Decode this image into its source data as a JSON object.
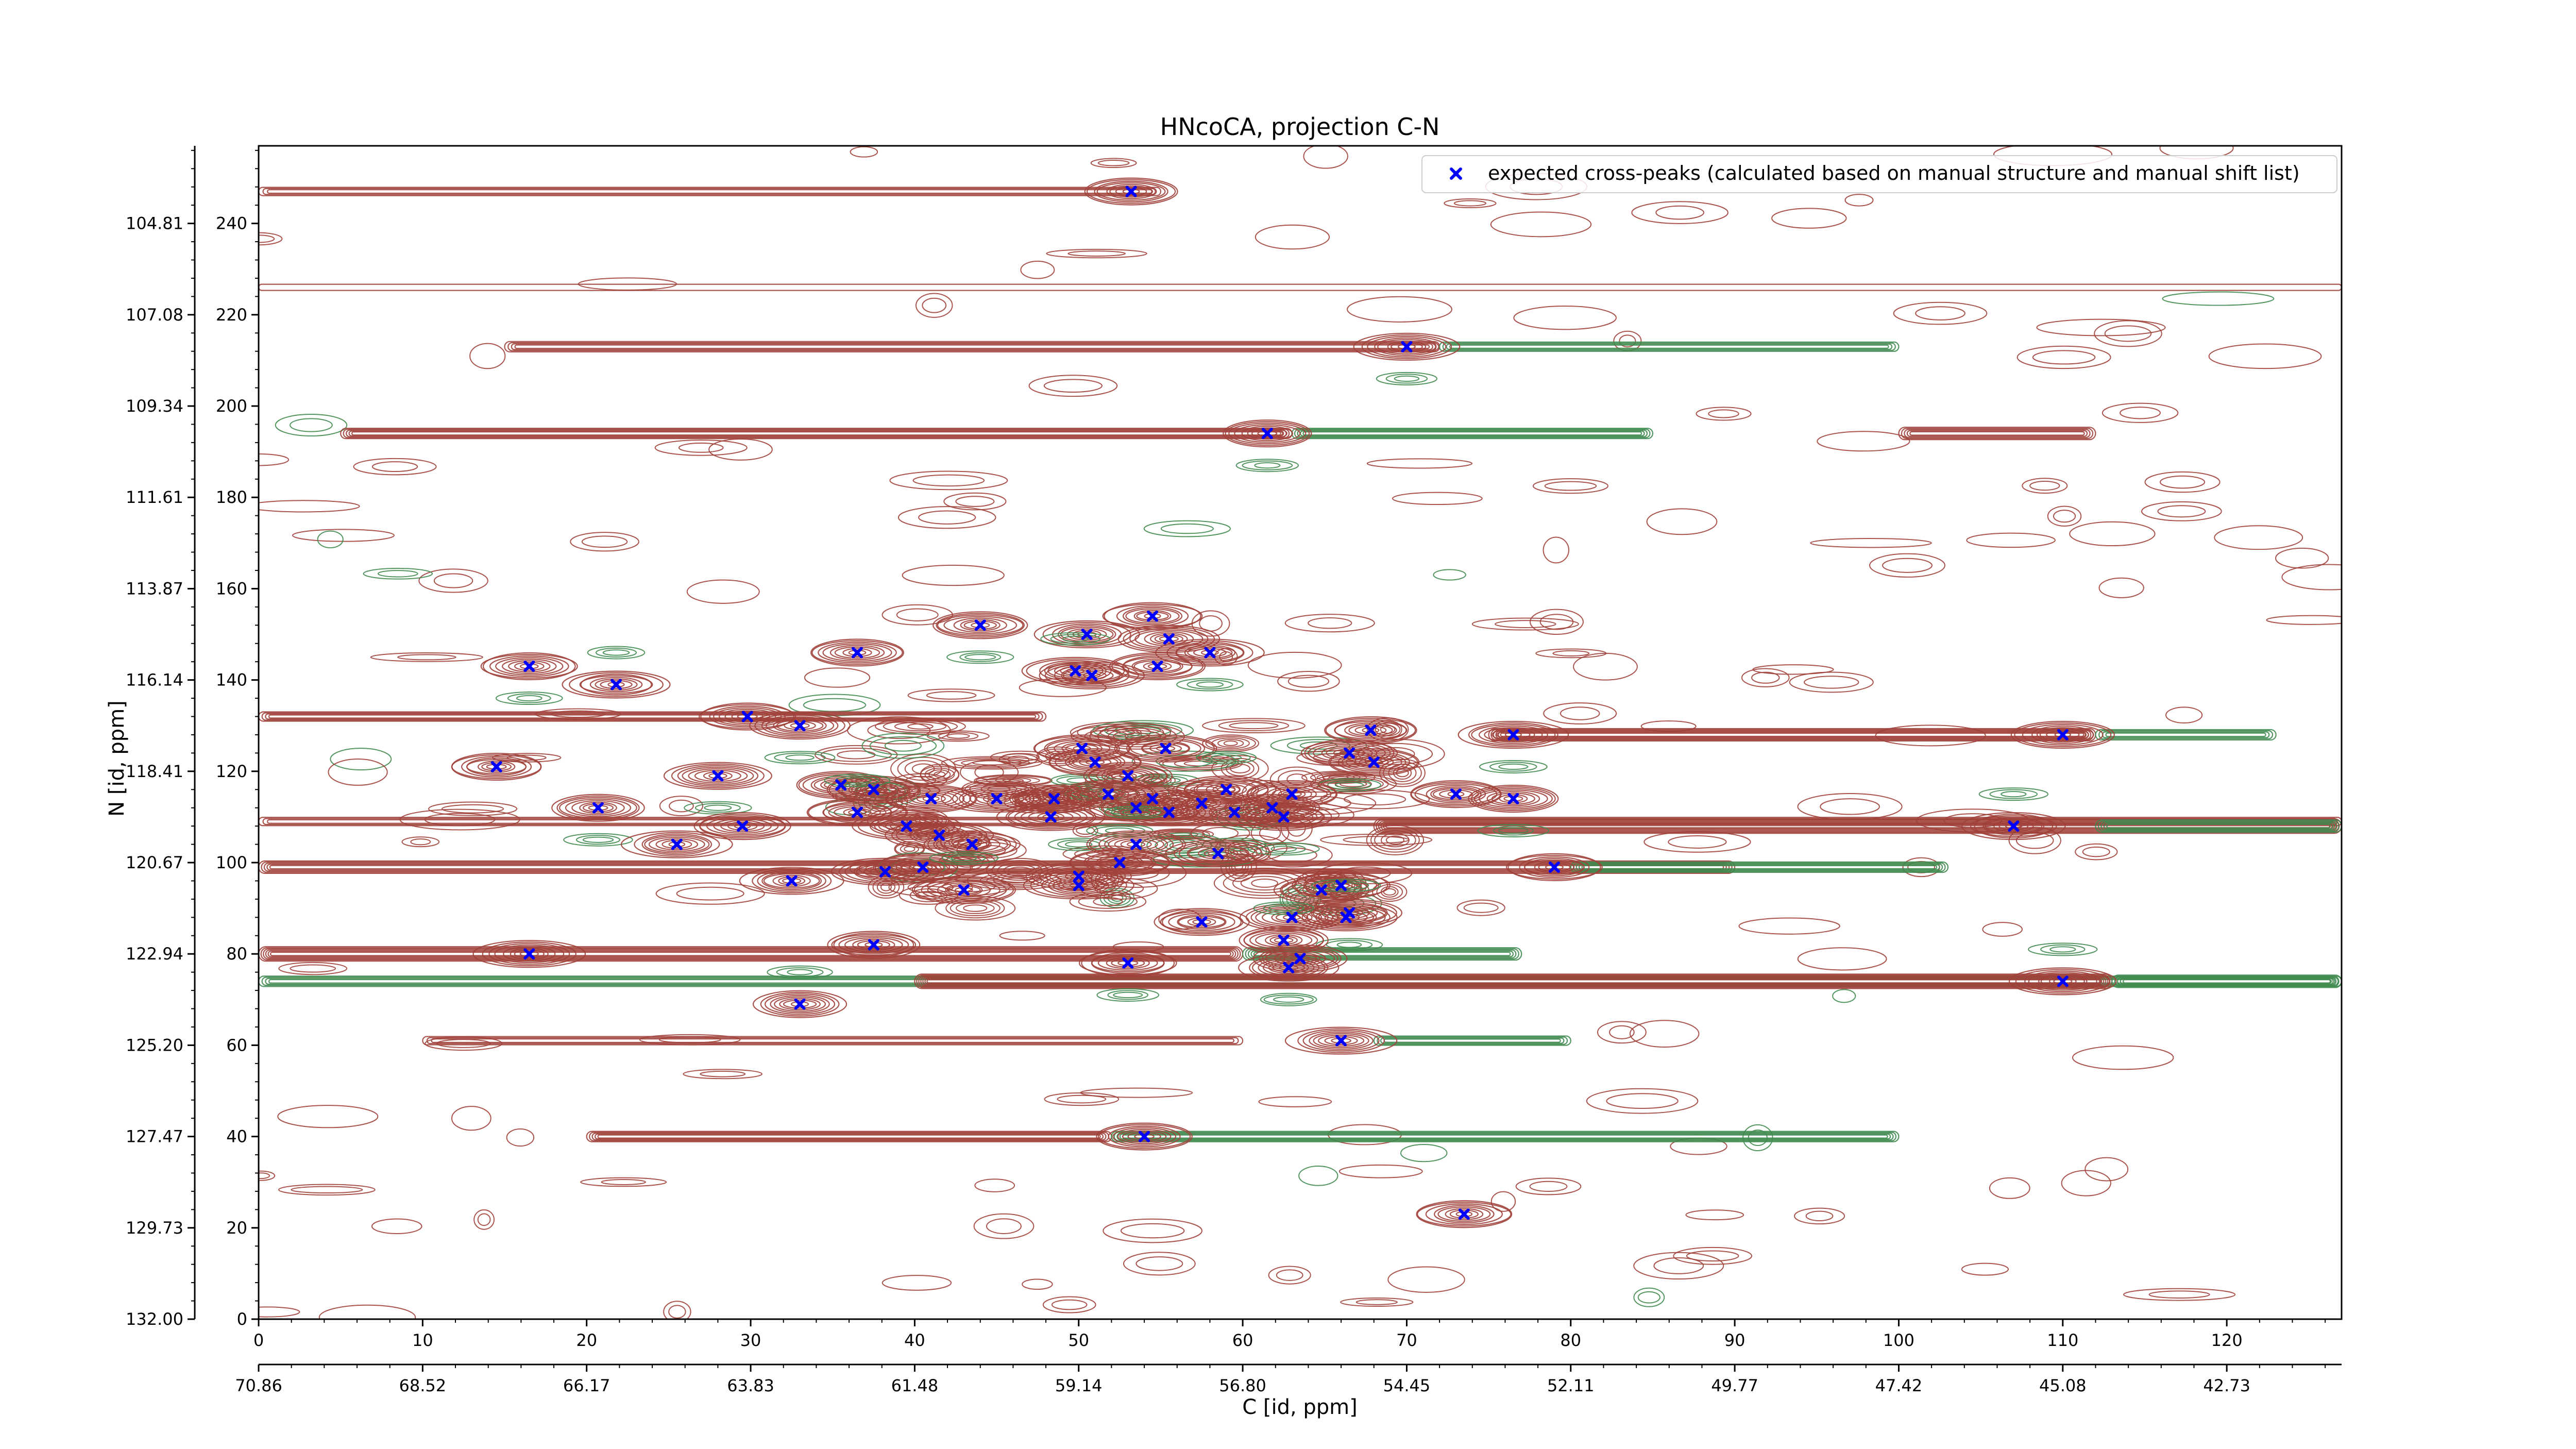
{
  "chart_data": {
    "type": "contour",
    "title": "HNcoCA, projection C-N",
    "xlabel": "C [id, ppm]",
    "ylabel": "N [id, ppm]",
    "xlim": [
      0,
      127
    ],
    "ylim": [
      0,
      257
    ],
    "x_index_ticks": [
      "0",
      "10",
      "20",
      "30",
      "40",
      "50",
      "60",
      "70",
      "80",
      "90",
      "100",
      "110",
      "120"
    ],
    "x_ppm_ticks": [
      "70.86",
      "68.52",
      "66.17",
      "63.83",
      "61.48",
      "59.14",
      "56.80",
      "54.45",
      "52.11",
      "49.77",
      "47.42",
      "45.08",
      "42.73"
    ],
    "y_index_ticks": [
      "0",
      "20",
      "40",
      "60",
      "80",
      "100",
      "120",
      "140",
      "160",
      "180",
      "200",
      "220",
      "240"
    ],
    "y_ppm_ticks": [
      "132.00",
      "129.73",
      "127.47",
      "125.20",
      "122.94",
      "120.67",
      "118.41",
      "116.14",
      "113.87",
      "111.61",
      "109.34",
      "107.08",
      "104.81"
    ],
    "legend": {
      "position": "top-right",
      "label": "expected cross-peaks (calculated based on manual structure and manual shift list)"
    },
    "colors": {
      "positive_contour": "#a0403a",
      "negative_contour": "#3f8a4f",
      "peak_marker": "#0000ff"
    },
    "series": [
      {
        "name": "expected cross-peaks (calculated based on manual structure and manual shift list)",
        "marker": "x",
        "points": [
          [
            53.2,
            247
          ],
          [
            70,
            213
          ],
          [
            61.5,
            194
          ],
          [
            16.5,
            143
          ],
          [
            21.8,
            139
          ],
          [
            36.5,
            146
          ],
          [
            44,
            152
          ],
          [
            50.5,
            150
          ],
          [
            55.5,
            149
          ],
          [
            58,
            146
          ],
          [
            54.5,
            154
          ],
          [
            54.8,
            143
          ],
          [
            49.8,
            142
          ],
          [
            50.8,
            141
          ],
          [
            29.8,
            132
          ],
          [
            33,
            130
          ],
          [
            14.5,
            121
          ],
          [
            28,
            119
          ],
          [
            67.8,
            129
          ],
          [
            66.5,
            124
          ],
          [
            68,
            122
          ],
          [
            76.5,
            128
          ],
          [
            110,
            128
          ],
          [
            50.2,
            125
          ],
          [
            55.3,
            125
          ],
          [
            51,
            122
          ],
          [
            53,
            119
          ],
          [
            35.5,
            117
          ],
          [
            37.5,
            116
          ],
          [
            41,
            114
          ],
          [
            45,
            114
          ],
          [
            48.5,
            114
          ],
          [
            51.8,
            115
          ],
          [
            54.5,
            114
          ],
          [
            59,
            116
          ],
          [
            63,
            115
          ],
          [
            61.8,
            112
          ],
          [
            62.5,
            110
          ],
          [
            55.5,
            111
          ],
          [
            53.5,
            112
          ],
          [
            59.5,
            111
          ],
          [
            57.5,
            113
          ],
          [
            20.7,
            112
          ],
          [
            29.5,
            108
          ],
          [
            36.5,
            111
          ],
          [
            39.5,
            108
          ],
          [
            43.5,
            104
          ],
          [
            48.3,
            110
          ],
          [
            41.5,
            106
          ],
          [
            25.5,
            104
          ],
          [
            32.5,
            96
          ],
          [
            38.2,
            98
          ],
          [
            40.5,
            99
          ],
          [
            43,
            94
          ],
          [
            50,
            97
          ],
          [
            50,
            95
          ],
          [
            52.5,
            100
          ],
          [
            53.5,
            104
          ],
          [
            58.5,
            102
          ],
          [
            73,
            115
          ],
          [
            76.5,
            114
          ],
          [
            107,
            108
          ],
          [
            79,
            99
          ],
          [
            66,
            95
          ],
          [
            64.8,
            94
          ],
          [
            66.5,
            89
          ],
          [
            66.3,
            88
          ],
          [
            63,
            88
          ],
          [
            57.5,
            87
          ],
          [
            62.5,
            83
          ],
          [
            37.5,
            82
          ],
          [
            53,
            78
          ],
          [
            63.5,
            79
          ],
          [
            62.8,
            77
          ],
          [
            16.5,
            80
          ],
          [
            33,
            69
          ],
          [
            110,
            74
          ],
          [
            66,
            61
          ],
          [
            54,
            40
          ],
          [
            73.5,
            23
          ]
        ]
      }
    ]
  }
}
